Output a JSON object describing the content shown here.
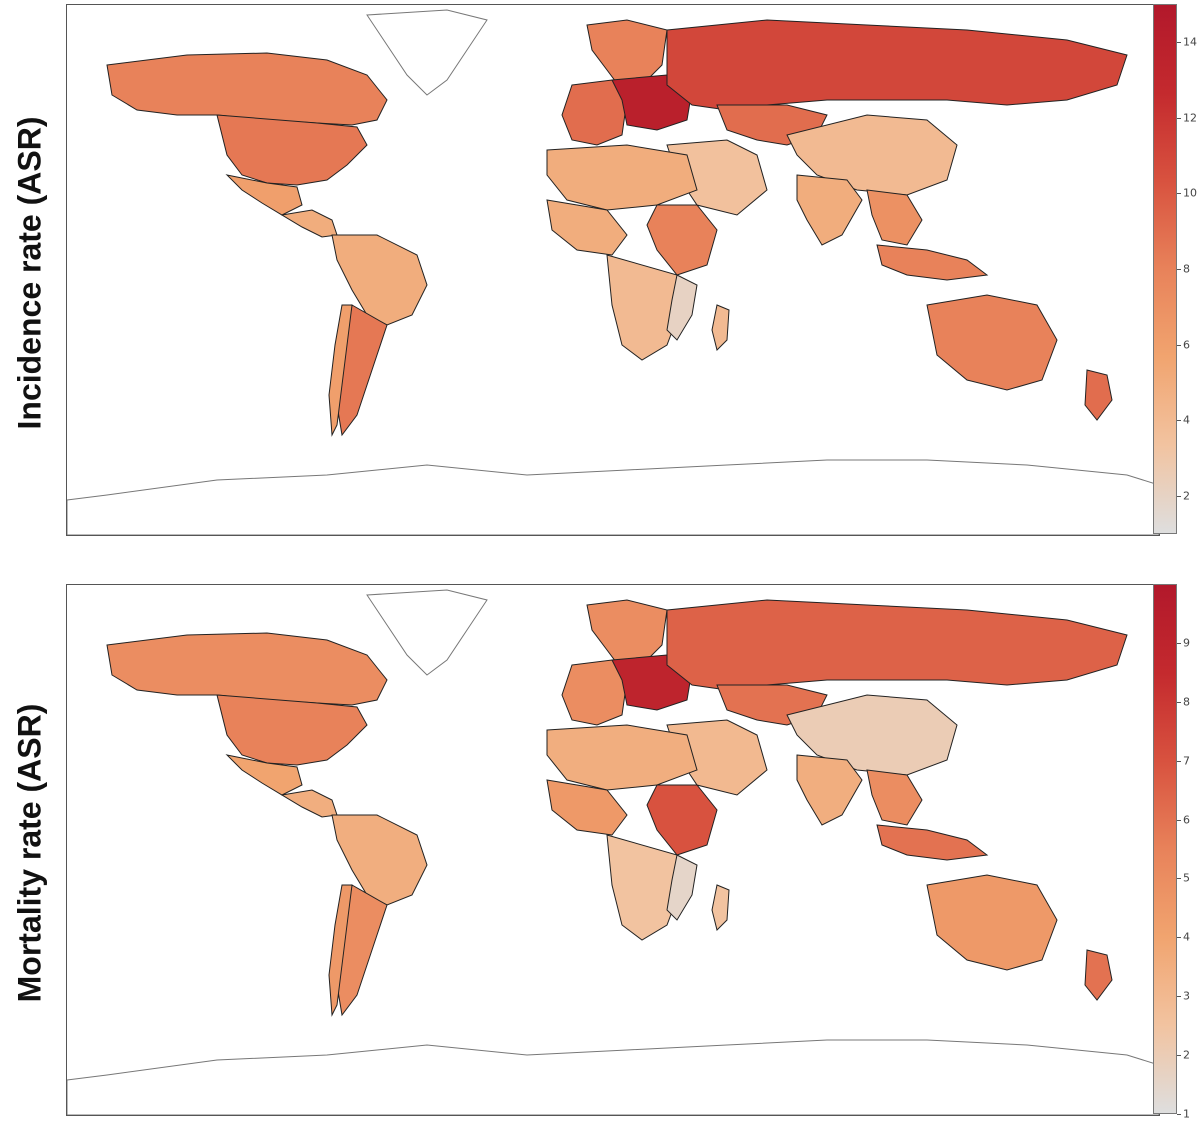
{
  "figure": {
    "panels": [
      {
        "row_label": "Incidence rate (ASR)",
        "colorbar": {
          "min": 1,
          "max": 15,
          "ticks": [
            "2",
            "4",
            "6",
            "8",
            "10",
            "12",
            "14"
          ]
        },
        "colors": [
          "#dedede",
          "#f2c3a0",
          "#f1a46f",
          "#e8825a",
          "#d8523f",
          "#c42a2e",
          "#b2182b"
        ]
      },
      {
        "row_label": "Mortality rate (ASR)",
        "colorbar": {
          "min": 1,
          "max": 10,
          "ticks": [
            "1",
            "2",
            "3",
            "4",
            "5",
            "6",
            "7",
            "8",
            "9"
          ]
        },
        "colors": [
          "#dedede",
          "#f2c3a0",
          "#f1a46f",
          "#e8825a",
          "#d8523f",
          "#c42a2e",
          "#b2182b"
        ]
      }
    ]
  },
  "map": {
    "type": "choropleth",
    "projection": "equirectangular",
    "regions": {
      "incidence": {
        "North America": 8.5,
        "Canada": 8,
        "USA": 8.5,
        "Greenland": null,
        "Mexico": 6,
        "Central America": 5,
        "South America": 5,
        "Argentina": 8.5,
        "Chile": 6,
        "Europe West": 9,
        "Poland/Central Europe": 14,
        "Scandinavia": 8,
        "Russia": 11,
        "Kazakhstan": 9,
        "Middle East": 3.5,
        "China": 4,
        "India": 5,
        "Southeast Asia": 7,
        "Indonesia": 8,
        "Australia": 8,
        "New Zealand": 9,
        "North Africa": 5,
        "West Africa": 5,
        "East Africa": 8,
        "Southern Africa": 4,
        "Mozambique": 2,
        "Madagascar": 4,
        "Antarctica": null
      },
      "mortality": {
        "North America": 5.5,
        "Canada": 5,
        "USA": 5.5,
        "Greenland": null,
        "Mexico": 4,
        "Central America": 3.5,
        "South America": 3.5,
        "Argentina": 5,
        "Chile": 4.5,
        "Europe West": 5,
        "Poland/Central Europe": 9,
        "Scandinavia": 5,
        "Russia": 6.5,
        "Kazakhstan": 6,
        "Middle East": 3,
        "China": 2,
        "India": 3.5,
        "Southeast Asia": 5,
        "Indonesia": 6,
        "Australia": 4.5,
        "New Zealand": 6,
        "North Africa": 3.5,
        "West Africa": 4.5,
        "East Africa": 7,
        "Southern Africa": 2.5,
        "Mozambique": 1.5,
        "Madagascar": 2.5,
        "Antarctica": null
      }
    }
  }
}
